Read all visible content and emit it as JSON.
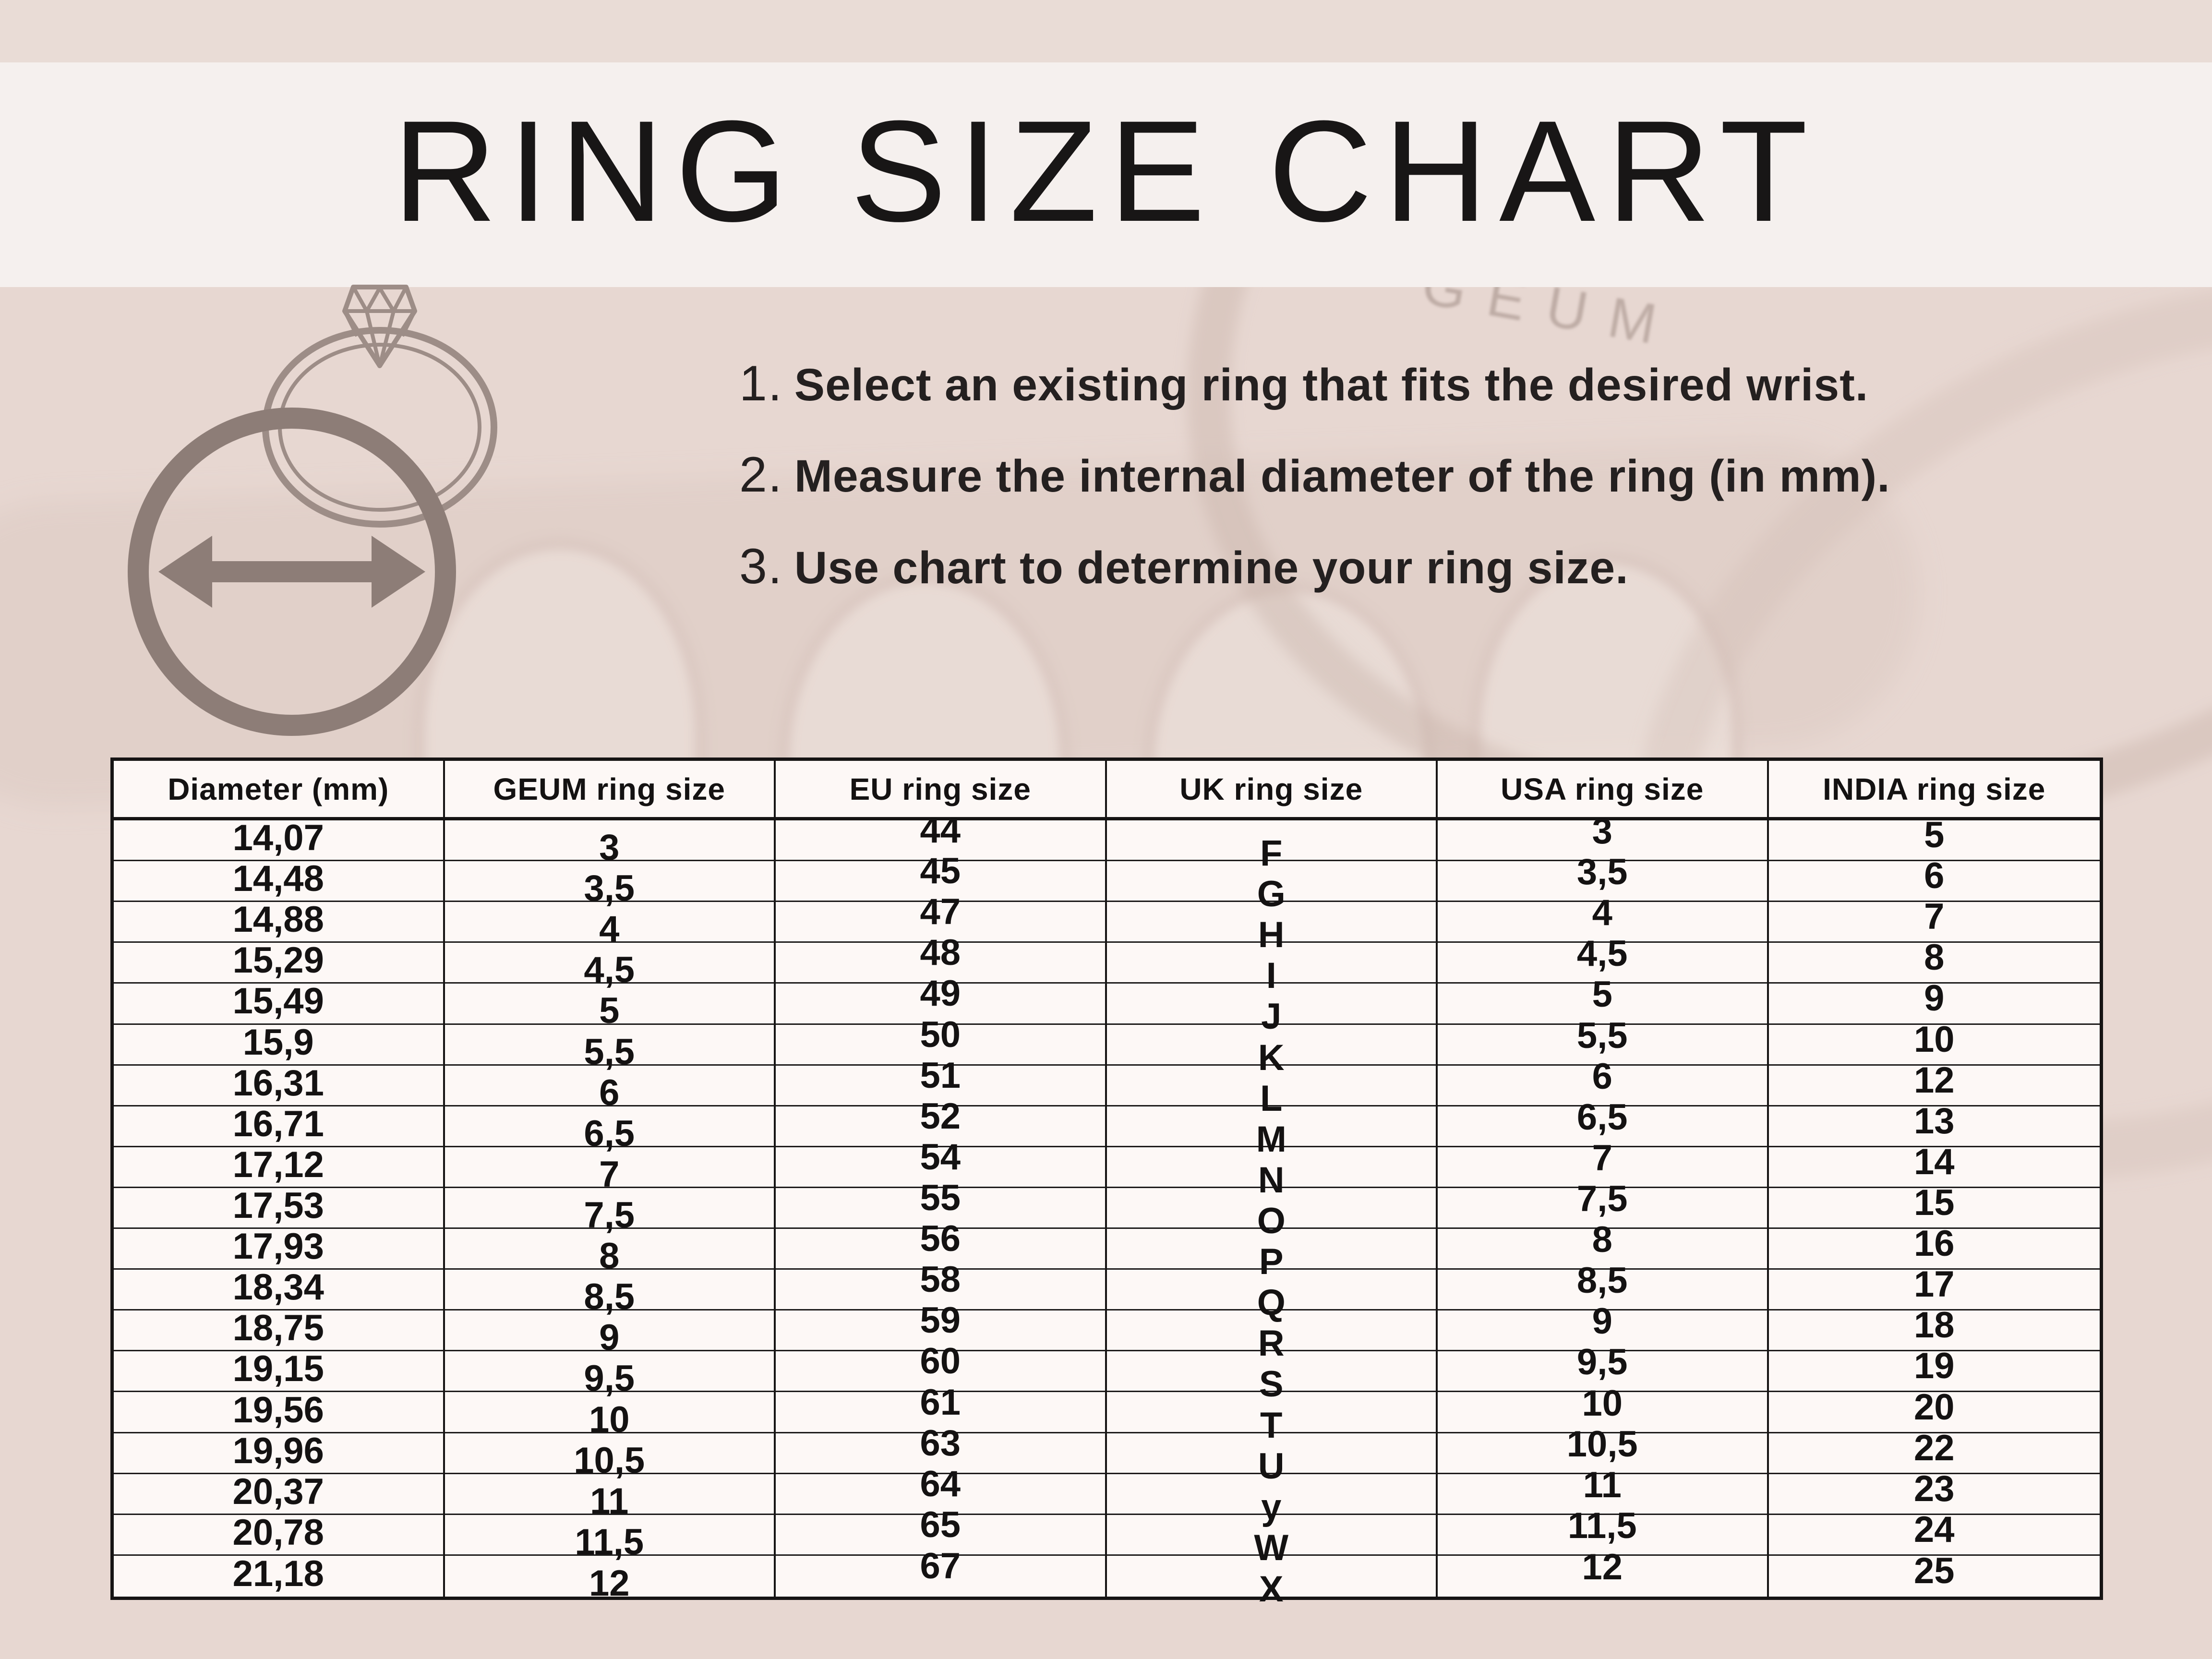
{
  "title": "RING SIZE CHART",
  "watermark": "GEUM",
  "instructions": [
    {
      "num": "1.",
      "text": "Select an existing ring that fits the desired wrist."
    },
    {
      "num": "2.",
      "text": "Measure the internal diameter of the ring (in mm)."
    },
    {
      "num": "3.",
      "text": "Use chart to determine your ring size."
    }
  ],
  "illustration": {
    "icons": [
      "diamond-ring-icon",
      "diameter-circle-icon",
      "double-arrow-icon"
    ]
  },
  "table": {
    "headers": [
      "Diameter  (mm)",
      "GEUM ring size",
      "EU ring size",
      "UK ring size",
      "USA ring size",
      "INDIA ring size"
    ],
    "rows": [
      [
        "14,07",
        "3",
        "44",
        "F",
        "3",
        "5"
      ],
      [
        "14,48",
        "3,5",
        "45",
        "G",
        "3,5",
        "6"
      ],
      [
        "14,88",
        "4",
        "47",
        "H",
        "4",
        "7"
      ],
      [
        "15,29",
        "4,5",
        "48",
        "I",
        "4,5",
        "8"
      ],
      [
        "15,49",
        "5",
        "49",
        "J",
        "5",
        "9"
      ],
      [
        "15,9",
        "5,5",
        "50",
        "K",
        "5,5",
        "10"
      ],
      [
        "16,31",
        "6",
        "51",
        "L",
        "6",
        "12"
      ],
      [
        "16,71",
        "6,5",
        "52",
        "M",
        "6,5",
        "13"
      ],
      [
        "17,12",
        "7",
        "54",
        "N",
        "7",
        "14"
      ],
      [
        "17,53",
        "7,5",
        "55",
        "O",
        "7,5",
        "15"
      ],
      [
        "17,93",
        "8",
        "56",
        "P",
        "8",
        "16"
      ],
      [
        "18,34",
        "8,5",
        "58",
        "Q",
        "8,5",
        "17"
      ],
      [
        "18,75",
        "9",
        "59",
        "R",
        "9",
        "18"
      ],
      [
        "19,15",
        "9,5",
        "60",
        "S",
        "9,5",
        "19"
      ],
      [
        "19,56",
        "10",
        "61",
        "T",
        "10",
        "20"
      ],
      [
        "19,96",
        "10,5",
        "63",
        "U",
        "10,5",
        "22"
      ],
      [
        "20,37",
        "11",
        "64",
        "y",
        "11",
        "23"
      ],
      [
        "20,78",
        "11,5",
        "65",
        "W",
        "11,5",
        "24"
      ],
      [
        "21,18",
        "12",
        "67",
        "X",
        "12",
        "25"
      ]
    ]
  },
  "colors": {
    "page_background": "#e7d7d1",
    "top_strip": "#e9dcd6",
    "title_band": "#f5f0ee",
    "table_background": "#fdf8f6",
    "line": "#161414",
    "text": "#1a1818",
    "illustration_accent": "#8d7d77",
    "watermark_tint": "#968179"
  }
}
